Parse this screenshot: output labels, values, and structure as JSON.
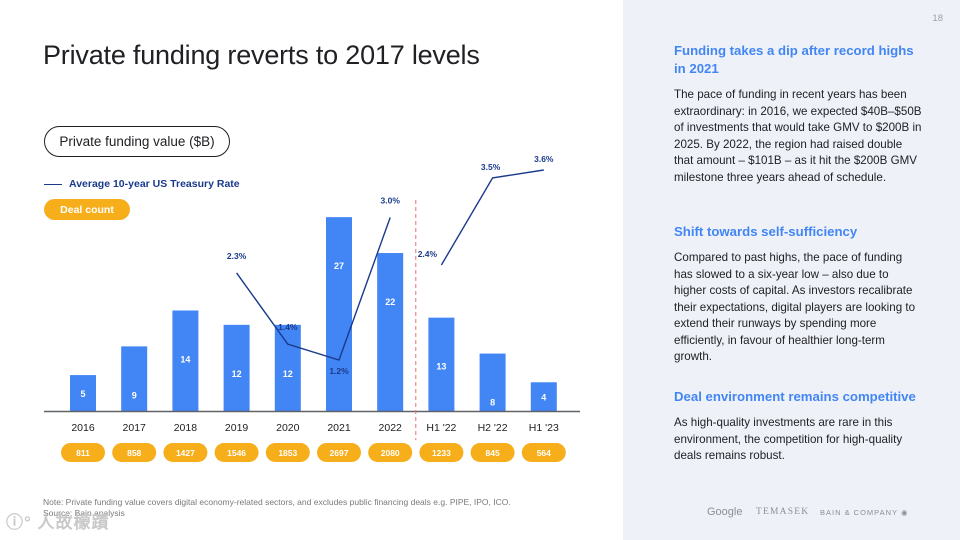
{
  "page": {
    "title": "Private funding reverts to 2017 levels",
    "page_number": "18",
    "metric_pill": "Private funding value ($B)",
    "legend_line": "Average 10-year US Treasury Rate",
    "legend_deal": "Deal count",
    "note_line1": "Note: Private funding value covers digital economy-related sectors, and excludes public financing deals e.g. PIPE, IPO, ICO.",
    "note_line2": "Source: Bain analysis",
    "watermark": "ⓘ° 人故檬蹟"
  },
  "sidebar": {
    "sections": [
      {
        "heading": "Funding takes a dip after record highs in 2021",
        "body": "The pace of funding in recent years has been extraordinary: in 2016, we expected $40B–$50B of investments that would take GMV to $200B in 2025. By 2022, the region had raised double that amount – $101B – as it hit the $200B GMV milestone three years ahead of schedule."
      },
      {
        "heading": "Shift towards self-sufficiency",
        "body": "Compared to past highs, the pace of funding has slowed to a six-year low – also due to higher costs of capital. As investors recalibrate their expectations, digital players are looking to extend their runways by spending more efficiently, in favour of healthier long-term growth."
      },
      {
        "heading": "Deal environment remains competitive",
        "body": "As high-quality investments are rare in this environment, the competition for high-quality deals remains robust."
      }
    ],
    "logos": {
      "google": "Google",
      "temasek": "TEMASEK",
      "bain": "BAIN & COMPANY"
    }
  },
  "chart_data": {
    "type": "bar",
    "categories": [
      "2016",
      "2017",
      "2018",
      "2019",
      "2020",
      "2021",
      "2022",
      "H1 '22",
      "H2 '22",
      "H1 '23"
    ],
    "series": [
      {
        "name": "Private funding value ($B)",
        "values": [
          5,
          9,
          14,
          12,
          12,
          27,
          22,
          13,
          8,
          4
        ]
      },
      {
        "name": "Average 10-year US Treasury Rate",
        "type": "line",
        "labels": [
          "2.3%",
          "1.4%",
          "1.2%",
          "3.0%",
          "2.4%",
          "3.5%",
          "3.6%"
        ],
        "values": [
          2.3,
          1.4,
          1.2,
          3.0,
          2.4,
          3.5,
          3.6
        ],
        "x": [
          "2019",
          "2020",
          "2021",
          "2022",
          "H1 '22",
          "H2 '22",
          "H1 '23"
        ]
      }
    ],
    "deal_count": [
      811,
      858,
      1427,
      1546,
      1853,
      2697,
      2080,
      1233,
      845,
      564
    ],
    "colors": {
      "bar": "#4285f4",
      "line": "#1a3a8c",
      "deal": "#f7ae1b",
      "divider": "#e57373"
    },
    "divider_between": [
      "2022",
      "H1 '22"
    ],
    "ylim": [
      0,
      30
    ]
  }
}
